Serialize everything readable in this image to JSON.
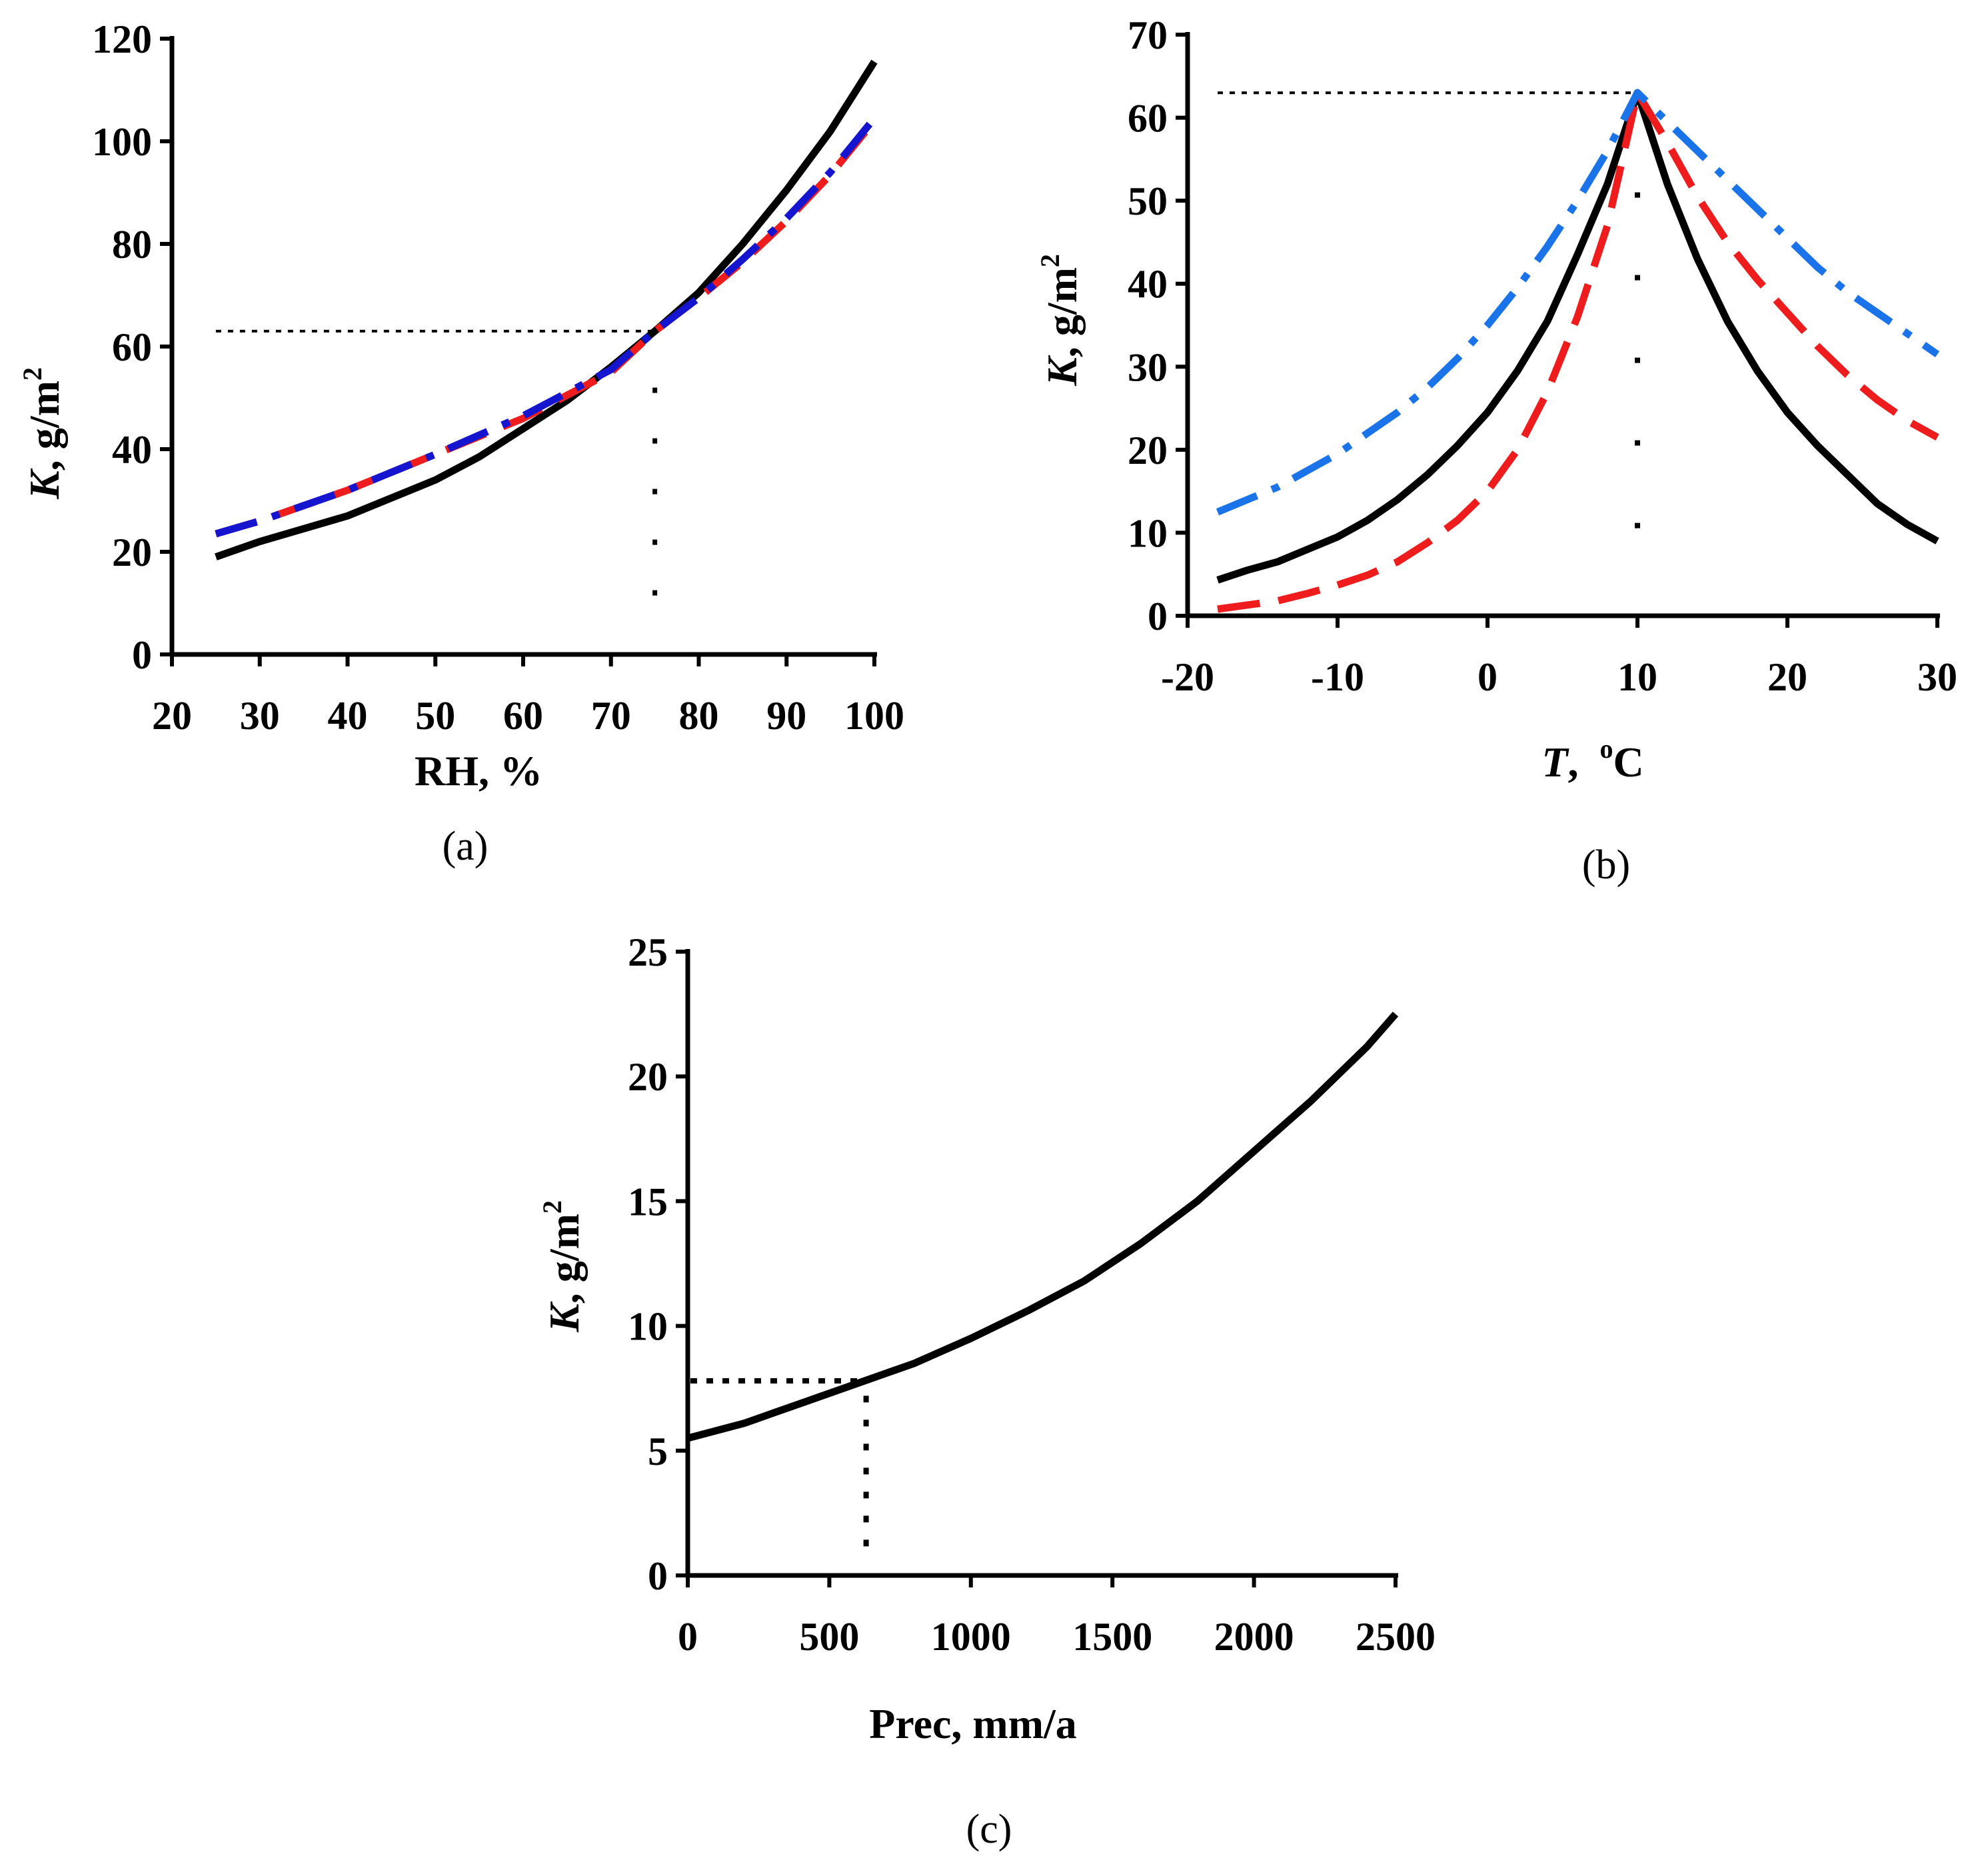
{
  "chart_data": [
    {
      "id": "a",
      "type": "line",
      "caption": "(a)",
      "xlabel": "RH, %",
      "ylabel_italic": "K",
      "ylabel_rest": ",  g/m",
      "ylabel_sup": "2",
      "xlim": [
        20,
        100
      ],
      "ylim": [
        0,
        120
      ],
      "xticks": [
        "20",
        "30",
        "40",
        "50",
        "60",
        "70",
        "80",
        "90",
        "100"
      ],
      "yticks": [
        "0",
        "20",
        "40",
        "60",
        "80",
        "100",
        "120"
      ],
      "reference": {
        "x": 75,
        "y": 63
      },
      "series": [
        {
          "name": "black-solid",
          "color": "#000000",
          "style": "solid",
          "x": [
            25,
            30,
            40,
            50,
            55,
            60,
            65,
            70,
            75,
            80,
            85,
            90,
            95,
            100
          ],
          "y": [
            19,
            22,
            27,
            34,
            38.5,
            44,
            49.5,
            56,
            63,
            70.5,
            80,
            90.5,
            102,
            115.5
          ]
        },
        {
          "name": "red-dashed",
          "color": "#ee1c1c",
          "style": "dashed",
          "x": [
            25,
            30,
            40,
            50,
            60,
            70,
            75,
            80,
            85,
            90,
            95,
            100
          ],
          "y": [
            23.5,
            26,
            32,
            39,
            46,
            55,
            63,
            69.5,
            76.5,
            84.5,
            93.5,
            104
          ]
        },
        {
          "name": "blue-dashdot",
          "color": "#1515d0",
          "style": "dashdot",
          "x": [
            25,
            30,
            40,
            50,
            60,
            70,
            75,
            80,
            85,
            90,
            95,
            100
          ],
          "y": [
            23.5,
            26,
            32,
            39,
            46.5,
            55.5,
            63,
            69.5,
            77,
            85,
            94,
            104.5
          ]
        }
      ]
    },
    {
      "id": "b",
      "type": "line",
      "caption": "(b)",
      "xlabel_italic": "T",
      "xlabel_rest": ",  ",
      "xlabel_sup": "o",
      "xlabel_unit": "C",
      "ylabel_italic": "K",
      "ylabel_rest": ",  g/m",
      "ylabel_sup": "2",
      "xlim": [
        -20,
        30
      ],
      "ylim": [
        0,
        70
      ],
      "xticks": [
        "-20",
        "-10",
        "0",
        "10",
        "20",
        "30"
      ],
      "yticks": [
        "0",
        "10",
        "20",
        "30",
        "40",
        "50",
        "60",
        "70"
      ],
      "reference": {
        "x": 10,
        "y": 63
      },
      "series": [
        {
          "name": "black-solid",
          "color": "#000000",
          "style": "solid",
          "x": [
            -18,
            -16,
            -14,
            -12,
            -10,
            -8,
            -6,
            -4,
            -2,
            0,
            2,
            4,
            6,
            8,
            10,
            12,
            14,
            16,
            18,
            20,
            22,
            24,
            26,
            28,
            30
          ],
          "y": [
            4.3,
            5.5,
            6.5,
            8,
            9.5,
            11.5,
            14,
            17,
            20.5,
            24.5,
            29.5,
            35.5,
            43.5,
            52,
            63,
            52,
            43,
            35.5,
            29.5,
            24.5,
            20.5,
            17,
            13.5,
            11,
            9
          ]
        },
        {
          "name": "red-dashed",
          "color": "#ee1c1c",
          "style": "dashed",
          "x": [
            -18,
            -16,
            -14,
            -12,
            -10,
            -8,
            -6,
            -4,
            -2,
            0,
            2,
            4,
            6,
            8,
            10,
            12,
            14,
            16,
            18,
            20,
            22,
            24,
            26,
            28,
            30
          ],
          "y": [
            0.8,
            1.3,
            1.8,
            2.7,
            3.7,
            4.9,
            6.5,
            8.8,
            11.5,
            15,
            20,
            27,
            36,
            47,
            63,
            57,
            50.5,
            45,
            40.5,
            36.5,
            32.5,
            29,
            26,
            23.5,
            21.5
          ]
        },
        {
          "name": "blue-dashdot",
          "color": "#1a73e8",
          "style": "dashdot",
          "x": [
            -18,
            -16,
            -14,
            -12,
            -10,
            -8,
            -6,
            -4,
            -2,
            0,
            2,
            4,
            6,
            8,
            10,
            12,
            14,
            16,
            18,
            20,
            22,
            24,
            26,
            28,
            30
          ],
          "y": [
            12.5,
            14,
            15.5,
            17.5,
            19.5,
            22,
            24.5,
            27.5,
            31,
            35,
            39.5,
            44.5,
            50,
            56,
            63,
            59.5,
            56,
            52.5,
            49,
            45.5,
            42,
            39,
            36.5,
            34,
            31.5
          ]
        }
      ]
    },
    {
      "id": "c",
      "type": "line",
      "caption": "(c)",
      "xlabel": "Prec, mm/a",
      "ylabel_italic": "K",
      "ylabel_rest": ",  g/m",
      "ylabel_sup": "2",
      "xlim": [
        0,
        2500
      ],
      "ylim": [
        0,
        25
      ],
      "xticks": [
        "0",
        "500",
        "1000",
        "1500",
        "2000",
        "2500"
      ],
      "yticks": [
        "0",
        "5",
        "10",
        "15",
        "20",
        "25"
      ],
      "reference": {
        "x": 630,
        "y": 7.8
      },
      "series": [
        {
          "name": "black-solid",
          "color": "#000000",
          "style": "solid",
          "x": [
            0,
            100,
            200,
            300,
            400,
            500,
            600,
            700,
            800,
            900,
            1000,
            1200,
            1400,
            1600,
            1800,
            2000,
            2200,
            2400,
            2500
          ],
          "y": [
            5.5,
            5.8,
            6.1,
            6.5,
            6.9,
            7.3,
            7.7,
            8.1,
            8.5,
            9.0,
            9.5,
            10.6,
            11.8,
            13.3,
            15.0,
            17.0,
            19.0,
            21.2,
            22.5
          ]
        }
      ]
    }
  ]
}
